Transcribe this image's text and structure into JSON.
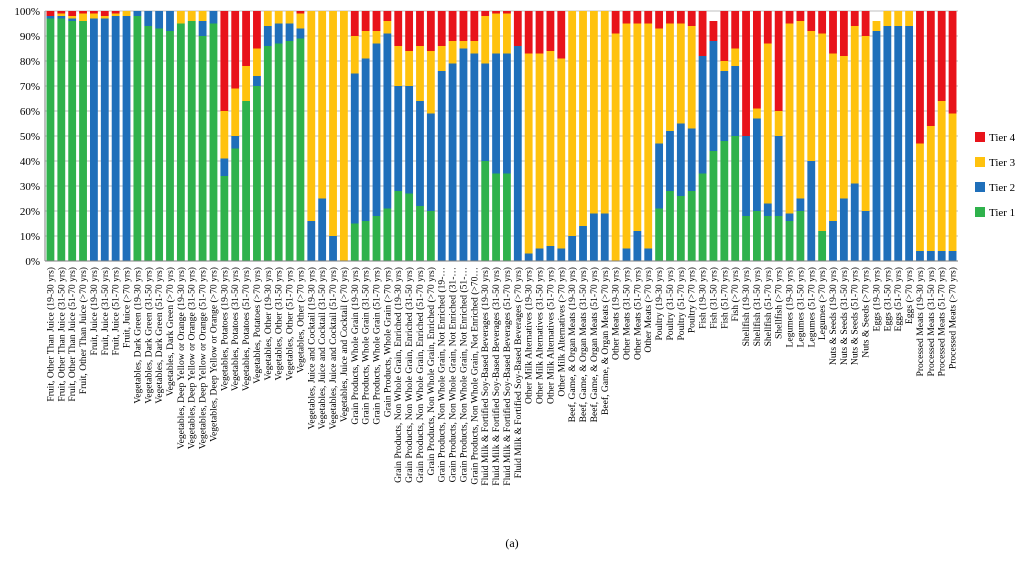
{
  "caption": "(a)",
  "chart_data": {
    "type": "bar",
    "stacked": true,
    "percent": true,
    "ylim": [
      0,
      100
    ],
    "yticks": [
      "0%",
      "10%",
      "20%",
      "30%",
      "40%",
      "50%",
      "60%",
      "70%",
      "80%",
      "90%",
      "100%"
    ],
    "grid": true,
    "legend_position": "right",
    "categories": [
      "Fruit, Other Than Juice (19-30 yrs)",
      "Fruit, Other Than Juice (31-50 yrs)",
      "Fruit, Other Than Juice (51-70 yrs)",
      "Fruit, Other Than Juice (>70 yrs)",
      "Fruit, Juice (19-30 yrs)",
      "Fruit, Juice (31-50 yrs)",
      "Fruit, Juice (51-70 yrs)",
      "Fruit, Juice (>70 yrs)",
      "Vegetables, Dark Green (19-30 yrs)",
      "Vegetables, Dark Green (31-50 yrs)",
      "Vegetables, Dark Green (51-70 yrs)",
      "Vegetables, Dark Green (>70 yrs)",
      "Vegetables, Deep Yellow or Orange (19-30 yrs)",
      "Vegetables, Deep Yellow or Orange (31-50 yrs)",
      "Vegetables, Deep Yellow or Orange (51-70 yrs)",
      "Vegetables, Deep Yellow or Orange (>70 yrs)",
      "Vegetables, Potatoes (19-30 yrs)",
      "Vegetables, Potatoes (31-50 yrs)",
      "Vegetables, Potatoes (51-70 yrs)",
      "Vegetables, Potatoes (>70 yrs)",
      "Vegetables, Other (19-30 yrs)",
      "Vegetables, Other (31-50 yrs)",
      "Vegetables, Other (51-70 yrs)",
      "Vegetables, Other (>70 yrs)",
      "Vegetables, Juice and Cocktail (19-30 yrs)",
      "Vegetables, Juice and Cocktail (31-50 yrs)",
      "Vegetables, Juice and Cocktail (51-70 yrs)",
      "Vegetables, Juice and Cocktail (>70 yrs)",
      "Grain Products, Whole Grain (19-30 yrs)",
      "Grain Products, Whole Grain (31-50 yrs)",
      "Grain Products, Whole Grain (51-70 yrs)",
      "Grain Products, Whole Grain (>70 yrs)",
      "Grain Products, Non Whole Grain, Enriched (19-30 yrs)",
      "Grain Products, Non Whole Grain, Enriched (31-50 yrs)",
      "Grain Products, Non Whole Grain, Enriched (51-70 yrs)",
      "Grain Products, Non Whole Grain, Enriched (>70 yrs)",
      "Grain Products, Non Whole Grain, Not Enriched (19-…",
      "Grain Products, Non Whole Grain, Not Enriched (31-…",
      "Grain Products, Non Whole Grain, Not Enriched (51-…",
      "Grain Products, Non Whole Grain, Not Enriched (>70…",
      "Fluid Milk & Fortified Soy-Based Beverages (19-30 yrs)",
      "Fluid Milk & Fortified Soy-Based Beverages (31-50 yrs)",
      "Fluid Milk & Fortified Soy-Based Beverages (51-70 yrs)",
      "Fluid Milk & Fortified Soy-Based Beverages (>70 yrs)",
      "Other Milk Alternatives (19-30 yrs)",
      "Other Milk Alternatives (31-50 yrs)",
      "Other Milk Alternatives (51-70 yrs)",
      "Other Milk Alternatives (>70 yrs)",
      "Beef, Game, & Organ Meats (19-30 yrs)",
      "Beef, Game, & Organ Meats (31-50 yrs)",
      "Beef, Game, & Organ Meats (51-70 yrs)",
      "Beef, Game, & Organ Meats (>70 yrs)",
      "Other Meats (19-30 yrs)",
      "Other Meats (31-50 yrs)",
      "Other Meats (51-70 yrs)",
      "Other Meats (>70 yrs)",
      "Poultry (19-30 yrs)",
      "Poultry (31-50 yrs)",
      "Poultry (51-70 yrs)",
      "Poultry (>70 yrs)",
      "Fish (19-30 yrs)",
      "Fish (31-50 yrs)",
      "Fish (51-70 yrs)",
      "Fish (>70 yrs)",
      "Shellfish (19-30 yrs)",
      "Shellfish (31-50 yrs)",
      "Shellfish (51-70 yrs)",
      "Shellfish (>70 yrs)",
      "Legumes (19-30 yrs)",
      "Legumes (31-50 yrs)",
      "Legumes (51-70 yrs)",
      "Legumes (>70 yrs)",
      "Nuts & Seeds (19-30 yrs)",
      "Nuts & Seeds (31-50 yrs)",
      "Nuts & Seeds (51-70 yrs)",
      "Nuts & Seeds (>70 yrs)",
      "Eggs (19-30 yrs)",
      "Eggs (31-50 yrs)",
      "Eggs (51-70 yrs)",
      "Eggs (>70 yrs)",
      "Processed Meats (19-30 yrs)",
      "Processed Meats (31-50 yrs)",
      "Processed Meats (51-70 yrs)",
      "Processed Meats (>70 yrs)"
    ],
    "series": [
      {
        "name": "Tier 1",
        "color": "#2fb24c",
        "values": [
          97,
          97,
          96,
          96,
          0,
          0,
          0,
          0,
          98,
          94,
          93,
          92,
          95,
          96,
          90,
          95,
          34,
          45,
          64,
          70,
          86,
          87,
          88,
          89,
          0,
          0,
          0,
          0,
          15,
          16,
          18,
          21,
          28,
          27,
          22,
          20,
          0,
          0,
          0,
          0,
          40,
          35,
          35,
          0,
          0,
          0,
          0,
          0,
          0,
          0,
          0,
          0,
          0,
          0,
          0,
          0,
          21,
          28,
          26,
          28,
          35,
          44,
          48,
          50,
          18,
          20,
          18,
          18,
          16,
          20,
          0,
          12,
          0,
          0,
          0,
          0,
          0,
          0,
          0,
          0,
          0,
          0,
          0,
          0
        ]
      },
      {
        "name": "Tier 2",
        "color": "#1f6fba",
        "values": [
          1,
          1,
          1,
          0,
          97,
          97,
          98,
          98,
          2,
          6,
          7,
          8,
          0,
          0,
          6,
          5,
          7,
          5,
          0,
          4,
          8,
          8,
          7,
          4,
          16,
          25,
          10,
          0,
          60,
          65,
          69,
          70,
          42,
          43,
          42,
          39,
          76,
          79,
          85,
          83,
          39,
          48,
          48,
          86,
          3,
          5,
          6,
          5,
          10,
          14,
          19,
          19,
          0,
          5,
          12,
          5,
          26,
          24,
          29,
          25,
          47,
          44,
          28,
          28,
          32,
          37,
          5,
          32,
          3,
          5,
          40,
          0,
          16,
          25,
          31,
          20,
          92,
          94,
          94,
          94,
          4,
          4,
          4,
          4
        ]
      },
      {
        "name": "Tier 3",
        "color": "#ffc20e",
        "values": [
          0,
          1,
          1,
          3,
          2,
          1,
          1,
          2,
          0,
          0,
          0,
          0,
          5,
          4,
          4,
          0,
          19,
          19,
          14,
          11,
          6,
          5,
          5,
          6,
          84,
          75,
          90,
          100,
          15,
          11,
          5,
          5,
          16,
          14,
          22,
          25,
          10,
          9,
          3,
          5,
          19,
          16,
          16,
          0,
          80,
          78,
          78,
          76,
          90,
          86,
          81,
          81,
          91,
          90,
          83,
          90,
          46,
          43,
          40,
          41,
          0,
          0,
          4,
          7,
          0,
          4,
          64,
          10,
          76,
          71,
          52,
          79,
          67,
          57,
          63,
          70,
          4,
          6,
          6,
          6,
          43,
          50,
          60,
          55
        ]
      },
      {
        "name": "Tier 4",
        "color": "#e8131a",
        "values": [
          2,
          1,
          2,
          1,
          1,
          2,
          1,
          0,
          0,
          0,
          0,
          0,
          0,
          0,
          0,
          0,
          40,
          31,
          22,
          15,
          0,
          0,
          0,
          1,
          0,
          0,
          0,
          0,
          10,
          8,
          8,
          4,
          14,
          16,
          14,
          16,
          14,
          12,
          12,
          12,
          2,
          1,
          1,
          14,
          17,
          17,
          16,
          19,
          0,
          0,
          0,
          0,
          9,
          5,
          5,
          5,
          7,
          5,
          5,
          6,
          18,
          8,
          20,
          15,
          50,
          39,
          13,
          40,
          5,
          4,
          8,
          9,
          17,
          18,
          6,
          10,
          0,
          0,
          0,
          0,
          53,
          46,
          36,
          41
        ]
      }
    ]
  }
}
